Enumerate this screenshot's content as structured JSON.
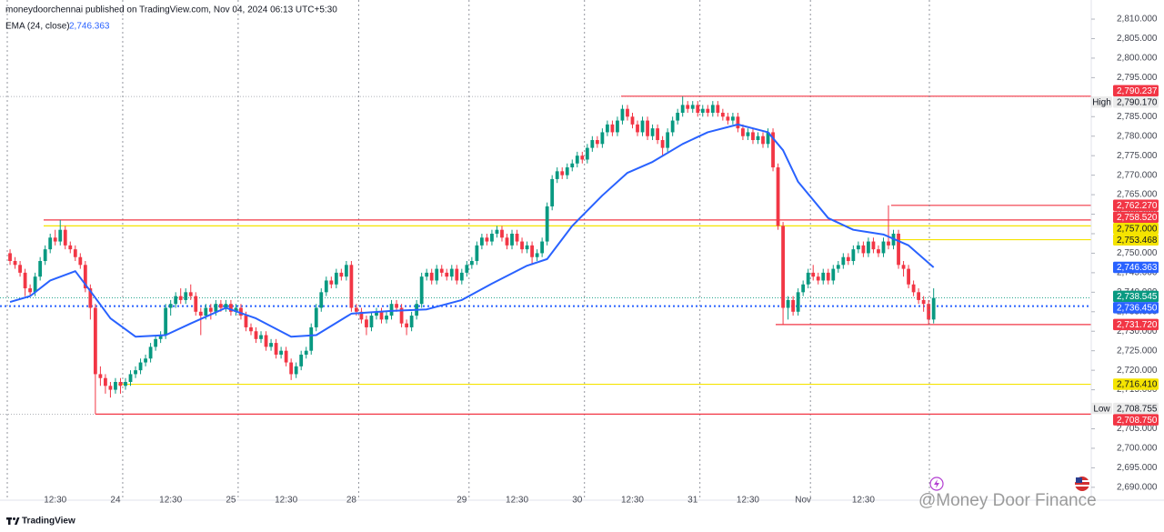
{
  "chart_data": {
    "type": "candlestick",
    "title": "moneydoorchennai published on TradingView.com, Nov 04, 2024 06:13 UTC+5:30",
    "watermark": "@Money Door Finance",
    "brand": "TradingView",
    "up_color": "#089981",
    "down_color": "#f23645",
    "xlim": [
      -2,
      215.4
    ],
    "ylim": [
      2686.7,
      2814.9
    ],
    "xticks": [
      {
        "value": 9,
        "label": "12:30"
      },
      {
        "value": 21,
        "label": "24"
      },
      {
        "value": 32,
        "label": "12:30"
      },
      {
        "value": 44,
        "label": "25"
      },
      {
        "value": 55,
        "label": "12:30"
      },
      {
        "value": 68,
        "label": "28"
      },
      {
        "value": 90,
        "label": "29"
      },
      {
        "value": 101,
        "label": "12:30"
      },
      {
        "value": 113,
        "label": "30"
      },
      {
        "value": 124,
        "label": "12:30"
      },
      {
        "value": 136,
        "label": "31"
      },
      {
        "value": 147,
        "label": "12:30"
      },
      {
        "value": 158,
        "label": "Nov"
      },
      {
        "value": 170,
        "label": "12:30"
      }
    ],
    "yticks": [
      {
        "value": 2690,
        "label": "2,690.000"
      },
      {
        "value": 2695,
        "label": "2,695.000"
      },
      {
        "value": 2700,
        "label": "2,700.000"
      },
      {
        "value": 2705,
        "label": "2,705.000"
      },
      {
        "value": 2710,
        "label": "2,710.000"
      },
      {
        "value": 2715,
        "label": "2,715.000"
      },
      {
        "value": 2720,
        "label": "2,720.000"
      },
      {
        "value": 2725,
        "label": "2,725.000"
      },
      {
        "value": 2730,
        "label": "2,730.000"
      },
      {
        "value": 2735,
        "label": "2,735.000"
      },
      {
        "value": 2740,
        "label": "2,740.000"
      },
      {
        "value": 2745,
        "label": "2,745.000"
      },
      {
        "value": 2750,
        "label": "2,750.000"
      },
      {
        "value": 2755,
        "label": "2,755.000"
      },
      {
        "value": 2760,
        "label": "2,760.000"
      },
      {
        "value": 2765,
        "label": "2,765.000"
      },
      {
        "value": 2770,
        "label": "2,770.000"
      },
      {
        "value": 2775,
        "label": "2,775.000"
      },
      {
        "value": 2780,
        "label": "2,780.000"
      },
      {
        "value": 2785,
        "label": "2,785.000"
      },
      {
        "value": 2790,
        "label": "2,790.000"
      },
      {
        "value": 2795,
        "label": "2,795.000"
      },
      {
        "value": 2800,
        "label": "2,800.000"
      },
      {
        "value": 2805,
        "label": "2,805.000"
      },
      {
        "value": 2810,
        "label": "2,810.000"
      }
    ],
    "candles": [
      [
        2750,
        2751,
        2747,
        2748
      ],
      [
        2748,
        2749,
        2746,
        2747
      ],
      [
        2747,
        2748,
        2744,
        2745
      ],
      [
        2745,
        2746,
        2739,
        2741
      ],
      [
        2741,
        2742,
        2739,
        2740
      ],
      [
        2740,
        2745,
        2739,
        2744
      ],
      [
        2744,
        2749,
        2743,
        2748
      ],
      [
        2748,
        2752,
        2747,
        2751
      ],
      [
        2751,
        2755,
        2750,
        2754
      ],
      [
        2754,
        2756,
        2752,
        2753
      ],
      [
        2753,
        2758.52,
        2752,
        2756
      ],
      [
        2756,
        2757,
        2751,
        2752
      ],
      [
        2752,
        2753,
        2750,
        2751
      ],
      [
        2751,
        2752,
        2748,
        2749
      ],
      [
        2749,
        2750,
        2746,
        2747
      ],
      [
        2747,
        2748,
        2740,
        2741
      ],
      [
        2741,
        2742,
        2733,
        2736
      ],
      [
        2736,
        2737,
        2708.755,
        2719
      ],
      [
        2719,
        2721,
        2716,
        2718
      ],
      [
        2718,
        2719,
        2714,
        2716
      ],
      [
        2716,
        2717,
        2713,
        2715
      ],
      [
        2715,
        2718,
        2714,
        2717
      ],
      [
        2717,
        2718,
        2714,
        2716
      ],
      [
        2716,
        2718,
        2715,
        2717
      ],
      [
        2717,
        2720,
        2716,
        2719
      ],
      [
        2719,
        2721,
        2718,
        2720
      ],
      [
        2720,
        2723,
        2719,
        2722
      ],
      [
        2722,
        2724,
        2721,
        2723
      ],
      [
        2723,
        2727,
        2722,
        2726
      ],
      [
        2726,
        2729,
        2725,
        2728
      ],
      [
        2728,
        2730,
        2727,
        2729
      ],
      [
        2729,
        2737,
        2728,
        2736
      ],
      [
        2736,
        2738,
        2734,
        2737
      ],
      [
        2737,
        2740,
        2736,
        2739
      ],
      [
        2739,
        2741,
        2737,
        2738
      ],
      [
        2738,
        2741,
        2737,
        2740
      ],
      [
        2740,
        2742,
        2738,
        2739
      ],
      [
        2739,
        2740,
        2734,
        2735
      ],
      [
        2735,
        2736,
        2729,
        2734
      ],
      [
        2734,
        2737,
        2733,
        2736
      ],
      [
        2736,
        2737,
        2733,
        2735
      ],
      [
        2735,
        2738,
        2734,
        2737
      ],
      [
        2737,
        2738,
        2735,
        2736
      ],
      [
        2736,
        2738,
        2735,
        2737
      ],
      [
        2737,
        2738,
        2734,
        2735
      ],
      [
        2735,
        2737,
        2734,
        2736
      ],
      [
        2736,
        2737,
        2733,
        2734
      ],
      [
        2734,
        2735,
        2730,
        2731
      ],
      [
        2731,
        2732,
        2729,
        2730
      ],
      [
        2730,
        2731,
        2727,
        2728
      ],
      [
        2728,
        2730,
        2727,
        2729
      ],
      [
        2729,
        2730,
        2725,
        2726
      ],
      [
        2726,
        2728,
        2725,
        2727
      ],
      [
        2727,
        2728,
        2723,
        2724
      ],
      [
        2724,
        2726,
        2723,
        2725
      ],
      [
        2725,
        2726,
        2721,
        2722
      ],
      [
        2722,
        2723,
        2717.5,
        2719
      ],
      [
        2719,
        2722,
        2718,
        2721
      ],
      [
        2721,
        2725,
        2720,
        2724
      ],
      [
        2724,
        2726,
        2723,
        2725
      ],
      [
        2725,
        2732,
        2724,
        2731
      ],
      [
        2731,
        2737,
        2730,
        2736
      ],
      [
        2736,
        2741,
        2735,
        2740
      ],
      [
        2740,
        2744,
        2739,
        2743
      ],
      [
        2743,
        2744,
        2741,
        2742
      ],
      [
        2742,
        2746,
        2741,
        2745
      ],
      [
        2745,
        2746,
        2743,
        2744
      ],
      [
        2744,
        2748,
        2743,
        2747
      ],
      [
        2747,
        2748,
        2735,
        2736
      ],
      [
        2736,
        2737,
        2734,
        2735
      ],
      [
        2735,
        2736,
        2732,
        2733
      ],
      [
        2733,
        2734,
        2729,
        2731
      ],
      [
        2731,
        2735,
        2730,
        2734
      ],
      [
        2734,
        2736,
        2733,
        2735
      ],
      [
        2735,
        2736,
        2732,
        2733
      ],
      [
        2733,
        2735,
        2732,
        2734
      ],
      [
        2734,
        2738,
        2733,
        2737
      ],
      [
        2737,
        2738,
        2735,
        2736
      ],
      [
        2736,
        2737,
        2731,
        2732
      ],
      [
        2732,
        2733,
        2729,
        2731
      ],
      [
        2731,
        2735,
        2730,
        2734
      ],
      [
        2734,
        2738,
        2733,
        2737
      ],
      [
        2737,
        2745,
        2736,
        2744
      ],
      [
        2744,
        2746,
        2743,
        2745
      ],
      [
        2745,
        2746,
        2742,
        2743
      ],
      [
        2743,
        2747,
        2742,
        2746
      ],
      [
        2746,
        2747,
        2744,
        2745
      ],
      [
        2745,
        2746,
        2743,
        2744
      ],
      [
        2744,
        2747,
        2743,
        2746
      ],
      [
        2746,
        2747,
        2742,
        2743
      ],
      [
        2743,
        2746,
        2742,
        2745
      ],
      [
        2745,
        2748,
        2744,
        2747
      ],
      [
        2747,
        2749,
        2746,
        2748
      ],
      [
        2748,
        2753,
        2747,
        2752
      ],
      [
        2752,
        2755,
        2751,
        2754
      ],
      [
        2754,
        2755,
        2752,
        2753
      ],
      [
        2753,
        2756,
        2752,
        2755
      ],
      [
        2755,
        2757,
        2754,
        2756
      ],
      [
        2756,
        2757,
        2753,
        2754
      ],
      [
        2754,
        2755,
        2751,
        2752
      ],
      [
        2752,
        2756,
        2751,
        2755
      ],
      [
        2755,
        2756,
        2752,
        2753
      ],
      [
        2753,
        2754,
        2750,
        2751
      ],
      [
        2751,
        2753,
        2750,
        2752
      ],
      [
        2752,
        2753,
        2747,
        2749
      ],
      [
        2749,
        2751,
        2748,
        2750
      ],
      [
        2750,
        2754,
        2749,
        2753
      ],
      [
        2753,
        2763,
        2752,
        2762
      ],
      [
        2762,
        2770,
        2761,
        2769
      ],
      [
        2769,
        2772,
        2768,
        2771
      ],
      [
        2771,
        2772,
        2769,
        2770
      ],
      [
        2770,
        2773,
        2769,
        2772
      ],
      [
        2772,
        2774,
        2771,
        2773
      ],
      [
        2773,
        2776,
        2772,
        2775
      ],
      [
        2775,
        2776,
        2773,
        2774
      ],
      [
        2774,
        2778,
        2773,
        2777
      ],
      [
        2777,
        2780,
        2776,
        2779
      ],
      [
        2779,
        2780,
        2777,
        2778
      ],
      [
        2778,
        2782,
        2777,
        2781
      ],
      [
        2781,
        2784,
        2780,
        2783
      ],
      [
        2783,
        2784,
        2780,
        2781
      ],
      [
        2781,
        2785,
        2780,
        2784
      ],
      [
        2784,
        2788,
        2783,
        2787
      ],
      [
        2787,
        2788,
        2784,
        2785
      ],
      [
        2785,
        2786,
        2782,
        2783
      ],
      [
        2783,
        2784,
        2780,
        2781
      ],
      [
        2781,
        2785,
        2780,
        2784
      ],
      [
        2784,
        2785,
        2779,
        2780
      ],
      [
        2780,
        2783,
        2779,
        2782
      ],
      [
        2782,
        2783,
        2778,
        2779
      ],
      [
        2779,
        2780,
        2775,
        2777
      ],
      [
        2777,
        2782,
        2776,
        2781
      ],
      [
        2781,
        2785,
        2780,
        2784
      ],
      [
        2784,
        2787,
        2783,
        2786
      ],
      [
        2786,
        2790.17,
        2785,
        2788
      ],
      [
        2788,
        2789,
        2786,
        2787
      ],
      [
        2787,
        2789,
        2786,
        2788
      ],
      [
        2788,
        2789,
        2785,
        2786
      ],
      [
        2786,
        2788,
        2785,
        2787
      ],
      [
        2787,
        2788,
        2785,
        2786
      ],
      [
        2786,
        2789,
        2785,
        2788
      ],
      [
        2788,
        2789,
        2785,
        2786
      ],
      [
        2786,
        2787,
        2784,
        2785
      ],
      [
        2785,
        2786,
        2783,
        2784
      ],
      [
        2784,
        2786,
        2783,
        2785
      ],
      [
        2785,
        2786,
        2781,
        2782
      ],
      [
        2782,
        2783,
        2779,
        2780
      ],
      [
        2780,
        2782,
        2779,
        2781
      ],
      [
        2781,
        2782,
        2778,
        2779
      ],
      [
        2779,
        2781,
        2778,
        2780
      ],
      [
        2780,
        2781,
        2777,
        2778
      ],
      [
        2778,
        2782,
        2777,
        2781
      ],
      [
        2781,
        2782,
        2771,
        2772
      ],
      [
        2772,
        2773,
        2756,
        2757
      ],
      [
        2757,
        2758,
        2731.72,
        2736
      ],
      [
        2736,
        2739,
        2733,
        2738
      ],
      [
        2738,
        2739,
        2734,
        2735
      ],
      [
        2735,
        2741,
        2734,
        2740
      ],
      [
        2740,
        2743,
        2739,
        2742
      ],
      [
        2742,
        2746,
        2741,
        2745
      ],
      [
        2745,
        2747,
        2743,
        2744
      ],
      [
        2744,
        2745,
        2742,
        2743
      ],
      [
        2743,
        2746,
        2742,
        2745
      ],
      [
        2745,
        2746,
        2742,
        2743
      ],
      [
        2743,
        2747,
        2742,
        2746
      ],
      [
        2746,
        2748,
        2745,
        2747
      ],
      [
        2747,
        2750,
        2746,
        2749
      ],
      [
        2749,
        2750,
        2747,
        2748
      ],
      [
        2748,
        2752,
        2747,
        2751
      ],
      [
        2751,
        2753,
        2750,
        2752
      ],
      [
        2752,
        2753,
        2749,
        2750
      ],
      [
        2750,
        2754,
        2749,
        2753
      ],
      [
        2753,
        2754,
        2750,
        2751
      ],
      [
        2751,
        2752,
        2749,
        2750
      ],
      [
        2750,
        2754,
        2749,
        2753
      ],
      [
        2753,
        2762.27,
        2751,
        2752
      ],
      [
        2752,
        2756,
        2751,
        2755
      ],
      [
        2755,
        2756,
        2746,
        2747
      ],
      [
        2747,
        2748,
        2744,
        2746
      ],
      [
        2746,
        2747,
        2741,
        2742
      ],
      [
        2742,
        2743,
        2739,
        2740
      ],
      [
        2740,
        2741,
        2737,
        2738
      ],
      [
        2738,
        2739,
        2735,
        2737
      ],
      [
        2737,
        2738,
        2731.72,
        2733
      ],
      [
        2733,
        2741,
        2732,
        2738.545
      ]
    ],
    "ema": {
      "name": "EMA (24, close)",
      "color": "#2962ff",
      "last_label": "2,746.363",
      "x": [
        0,
        4,
        8,
        13,
        16,
        20,
        25,
        31,
        36,
        43,
        49,
        56,
        61,
        68,
        76,
        83,
        90,
        96,
        103,
        107,
        112,
        118,
        123,
        128,
        134,
        139,
        145,
        151,
        154,
        157,
        163,
        168,
        174,
        179,
        184
      ],
      "values": [
        2737.5,
        2739,
        2743,
        2745.4,
        2740.3,
        2733.3,
        2728.6,
        2729,
        2732,
        2736,
        2733.3,
        2728.6,
        2729,
        2734.5,
        2735.2,
        2735.6,
        2738,
        2742.2,
        2746.8,
        2748.5,
        2757,
        2764.8,
        2770.6,
        2773.4,
        2778,
        2781,
        2783,
        2781,
        2776.4,
        2768.3,
        2759,
        2756,
        2754.8,
        2752,
        2746.363
      ]
    },
    "levels": [
      {
        "value": 2790.237,
        "label": "2,790.237",
        "color": "#f23645"
      },
      {
        "value": 2762.27,
        "label": "2,762.270",
        "color": "#f23645"
      },
      {
        "value": 2758.52,
        "label": "2,758.520",
        "color": "#f23645"
      },
      {
        "value": 2757,
        "label": "2,757.000",
        "color": "#f5e400"
      },
      {
        "value": 2753.468,
        "label": "2,753.468",
        "color": "#f5e400"
      },
      {
        "value": 2736.45,
        "label": "2,736.450",
        "color": "#2962ff"
      },
      {
        "value": 2731.72,
        "label": "2,731.720",
        "color": "#f23645"
      },
      {
        "value": 2716.41,
        "label": "2,716.410",
        "color": "#f5e400"
      },
      {
        "value": 2708.75,
        "label": "2,708.750",
        "color": "#f23645"
      }
    ],
    "high": {
      "name": "High",
      "value": 2790.17,
      "label": "2,790.170"
    },
    "low": {
      "name": "Low",
      "value": 2708.755,
      "label": "2,708.755"
    },
    "last": {
      "value": 2738.545,
      "label": "2,738.545",
      "color": "#089981"
    }
  }
}
